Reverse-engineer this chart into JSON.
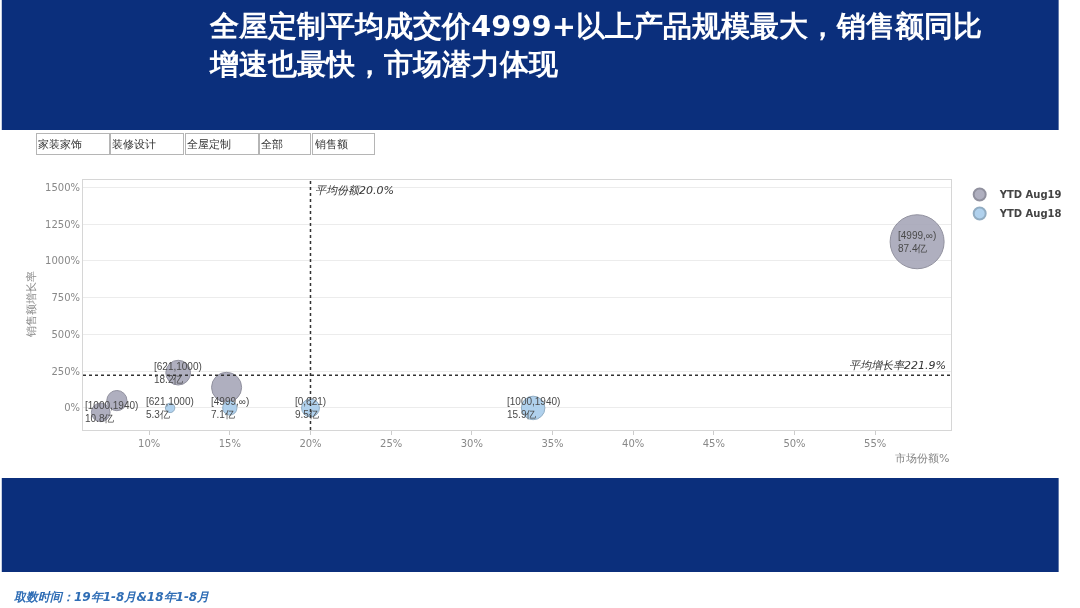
{
  "chart_data": {
    "type": "bubble",
    "title": "全屋定制平均成交价4999+以上产品规模最大，销售额同比增速也最快，市场潜力体现",
    "xlabel": "市场份额%",
    "ylabel": "销售额增长率",
    "xlim": [
      5.9,
      59.7
    ],
    "xticks": [
      {
        "value": 10,
        "label": "10%"
      },
      {
        "value": 15,
        "label": "15%"
      },
      {
        "value": 20,
        "label": "20%"
      },
      {
        "value": 25,
        "label": "25%"
      },
      {
        "value": 30,
        "label": "30%"
      },
      {
        "value": 35,
        "label": "35%"
      },
      {
        "value": 40,
        "label": "40%"
      },
      {
        "value": 45,
        "label": "45%"
      },
      {
        "value": 50,
        "label": "50%"
      },
      {
        "value": 55,
        "label": "55%"
      }
    ],
    "ylim": [
      -150,
      1550
    ],
    "yticks": [
      {
        "value": 0,
        "label": "0%"
      },
      {
        "value": 250,
        "label": "250%"
      },
      {
        "value": 500,
        "label": "500%"
      },
      {
        "value": 750,
        "label": "750%"
      },
      {
        "value": 1000,
        "label": "1000%"
      },
      {
        "value": 1250,
        "label": "1250%"
      },
      {
        "value": 1500,
        "label": "1500%"
      }
    ],
    "series": [
      {
        "name": "YTD Aug19",
        "color": "#a7a7b9",
        "x": [
          57.6,
          11.8,
          7.0,
          8.0,
          14.8
        ],
        "values": [
          1130,
          240,
          -30,
          50,
          140
        ],
        "sizes": [
          1,
          0.21,
          0.12,
          0.14,
          0.31
        ],
        "value_labels": [
          "[4999,∞)\n87.4亿",
          "[621,1000)\n18.2亿",
          "[1000,1940)\n10.8亿",
          null,
          null
        ]
      },
      {
        "name": "YTD Aug18",
        "color": "#a8cdec",
        "x": [
          11.3,
          15.0,
          20.0,
          33.8
        ],
        "values": [
          0,
          0,
          0,
          0
        ],
        "sizes": [
          0.03,
          0.07,
          0.11,
          0.19
        ],
        "value_labels": [
          "[621,1000)\n5.3亿",
          "[4999,∞)\n7.1亿",
          "[0,621)\n9.5亿",
          "[1000,1940)\n15.9亿"
        ]
      }
    ],
    "ref_lines": [
      {
        "axis": "x",
        "value": 20.0,
        "label": "平均份额20.0%",
        "color": "#333333",
        "line_style": "dotted"
      },
      {
        "axis": "y",
        "value": 221.9,
        "label": "平均增长率221.9%",
        "color": "#333333",
        "line_style": "dotted"
      }
    ],
    "grid": "y",
    "legend": "top right",
    "marker": "circle",
    "annotations": [
      "家装家饰",
      "装修设计",
      "全屋定制",
      "全部",
      "销售额",
      "取数时间：19年1-8月&18年1-8月"
    ]
  }
}
